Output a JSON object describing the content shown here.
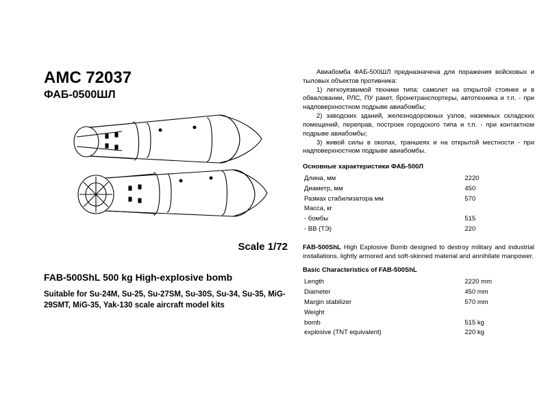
{
  "header": {
    "amc_code": "AMC 72037",
    "subtitle_ru": "ФАБ-0500ШЛ"
  },
  "illustration": {
    "scale_label": "Scale 1/72"
  },
  "english": {
    "title": "FAB-500ShL 500 kg High-explosive bomb",
    "suitable": "Suitable for Su-24M, Su-25, Su-27SM, Su-30S, Su-34, Su-35, MiG-29SMT, MiG-35, Yak-130 scale aircraft model kits"
  },
  "ru_desc": {
    "intro": "Авиабомба ФАБ-500ШЛ предназначена для поражения войсковых и тыловых объектов противника:",
    "p1": "1) легкоуязвимой техники типа: самолет на открытой стоянке и в обваловании, РЛС, ПУ ракет, бронетранспортеры, автотехника и т.п. - при надповерхностном подрыве авиабомбы;",
    "p2": "2) заводских зданий, железнодорожных узлов, наземных складских помещений, переправ, построек городского типа и т.п. - при контактном подрыве авиабомбы;",
    "p3": "3) живой силы в окопах, траншеях и на открытой местности - при надповерхностном подрыве авиабомбы."
  },
  "ru_specs": {
    "heading": "Основные характеристики ФАБ-500Л",
    "rows": [
      {
        "label": "Длина, мм",
        "value": "2220"
      },
      {
        "label": "Диаметр, мм",
        "value": "450"
      },
      {
        "label": "Размах стабилизатора мм",
        "value": "570"
      },
      {
        "label": "Масса, кг",
        "value": ""
      },
      {
        "label": "  - бомбы",
        "value": "515"
      },
      {
        "label": "  - ВВ (ТЭ)",
        "value": "220"
      }
    ]
  },
  "en_desc": {
    "body_prefix": "FAB-500ShL",
    "body_rest": " High Explosive Bomb designed to destroy military and industrial installations, lightly armored and soft-skinned material and annihilate manpower."
  },
  "en_specs": {
    "heading": "Basic Characteristics of FAB-500ShL",
    "rows": [
      {
        "label": "Length",
        "value": "2220 mm"
      },
      {
        "label": "Diameter",
        "value": "450 mm"
      },
      {
        "label": "Margin stabilizer",
        "value": "570 mm"
      },
      {
        "label": "Weight",
        "value": ""
      },
      {
        "label": "bomb",
        "value": "515 kg"
      },
      {
        "label": "explosive (TNT equivalent)",
        "value": "220 kg"
      }
    ]
  },
  "style": {
    "text_color": "#000000",
    "background": "#ffffff",
    "line_stroke": "#000000",
    "font_small": 9.5,
    "font_heading": 24
  }
}
